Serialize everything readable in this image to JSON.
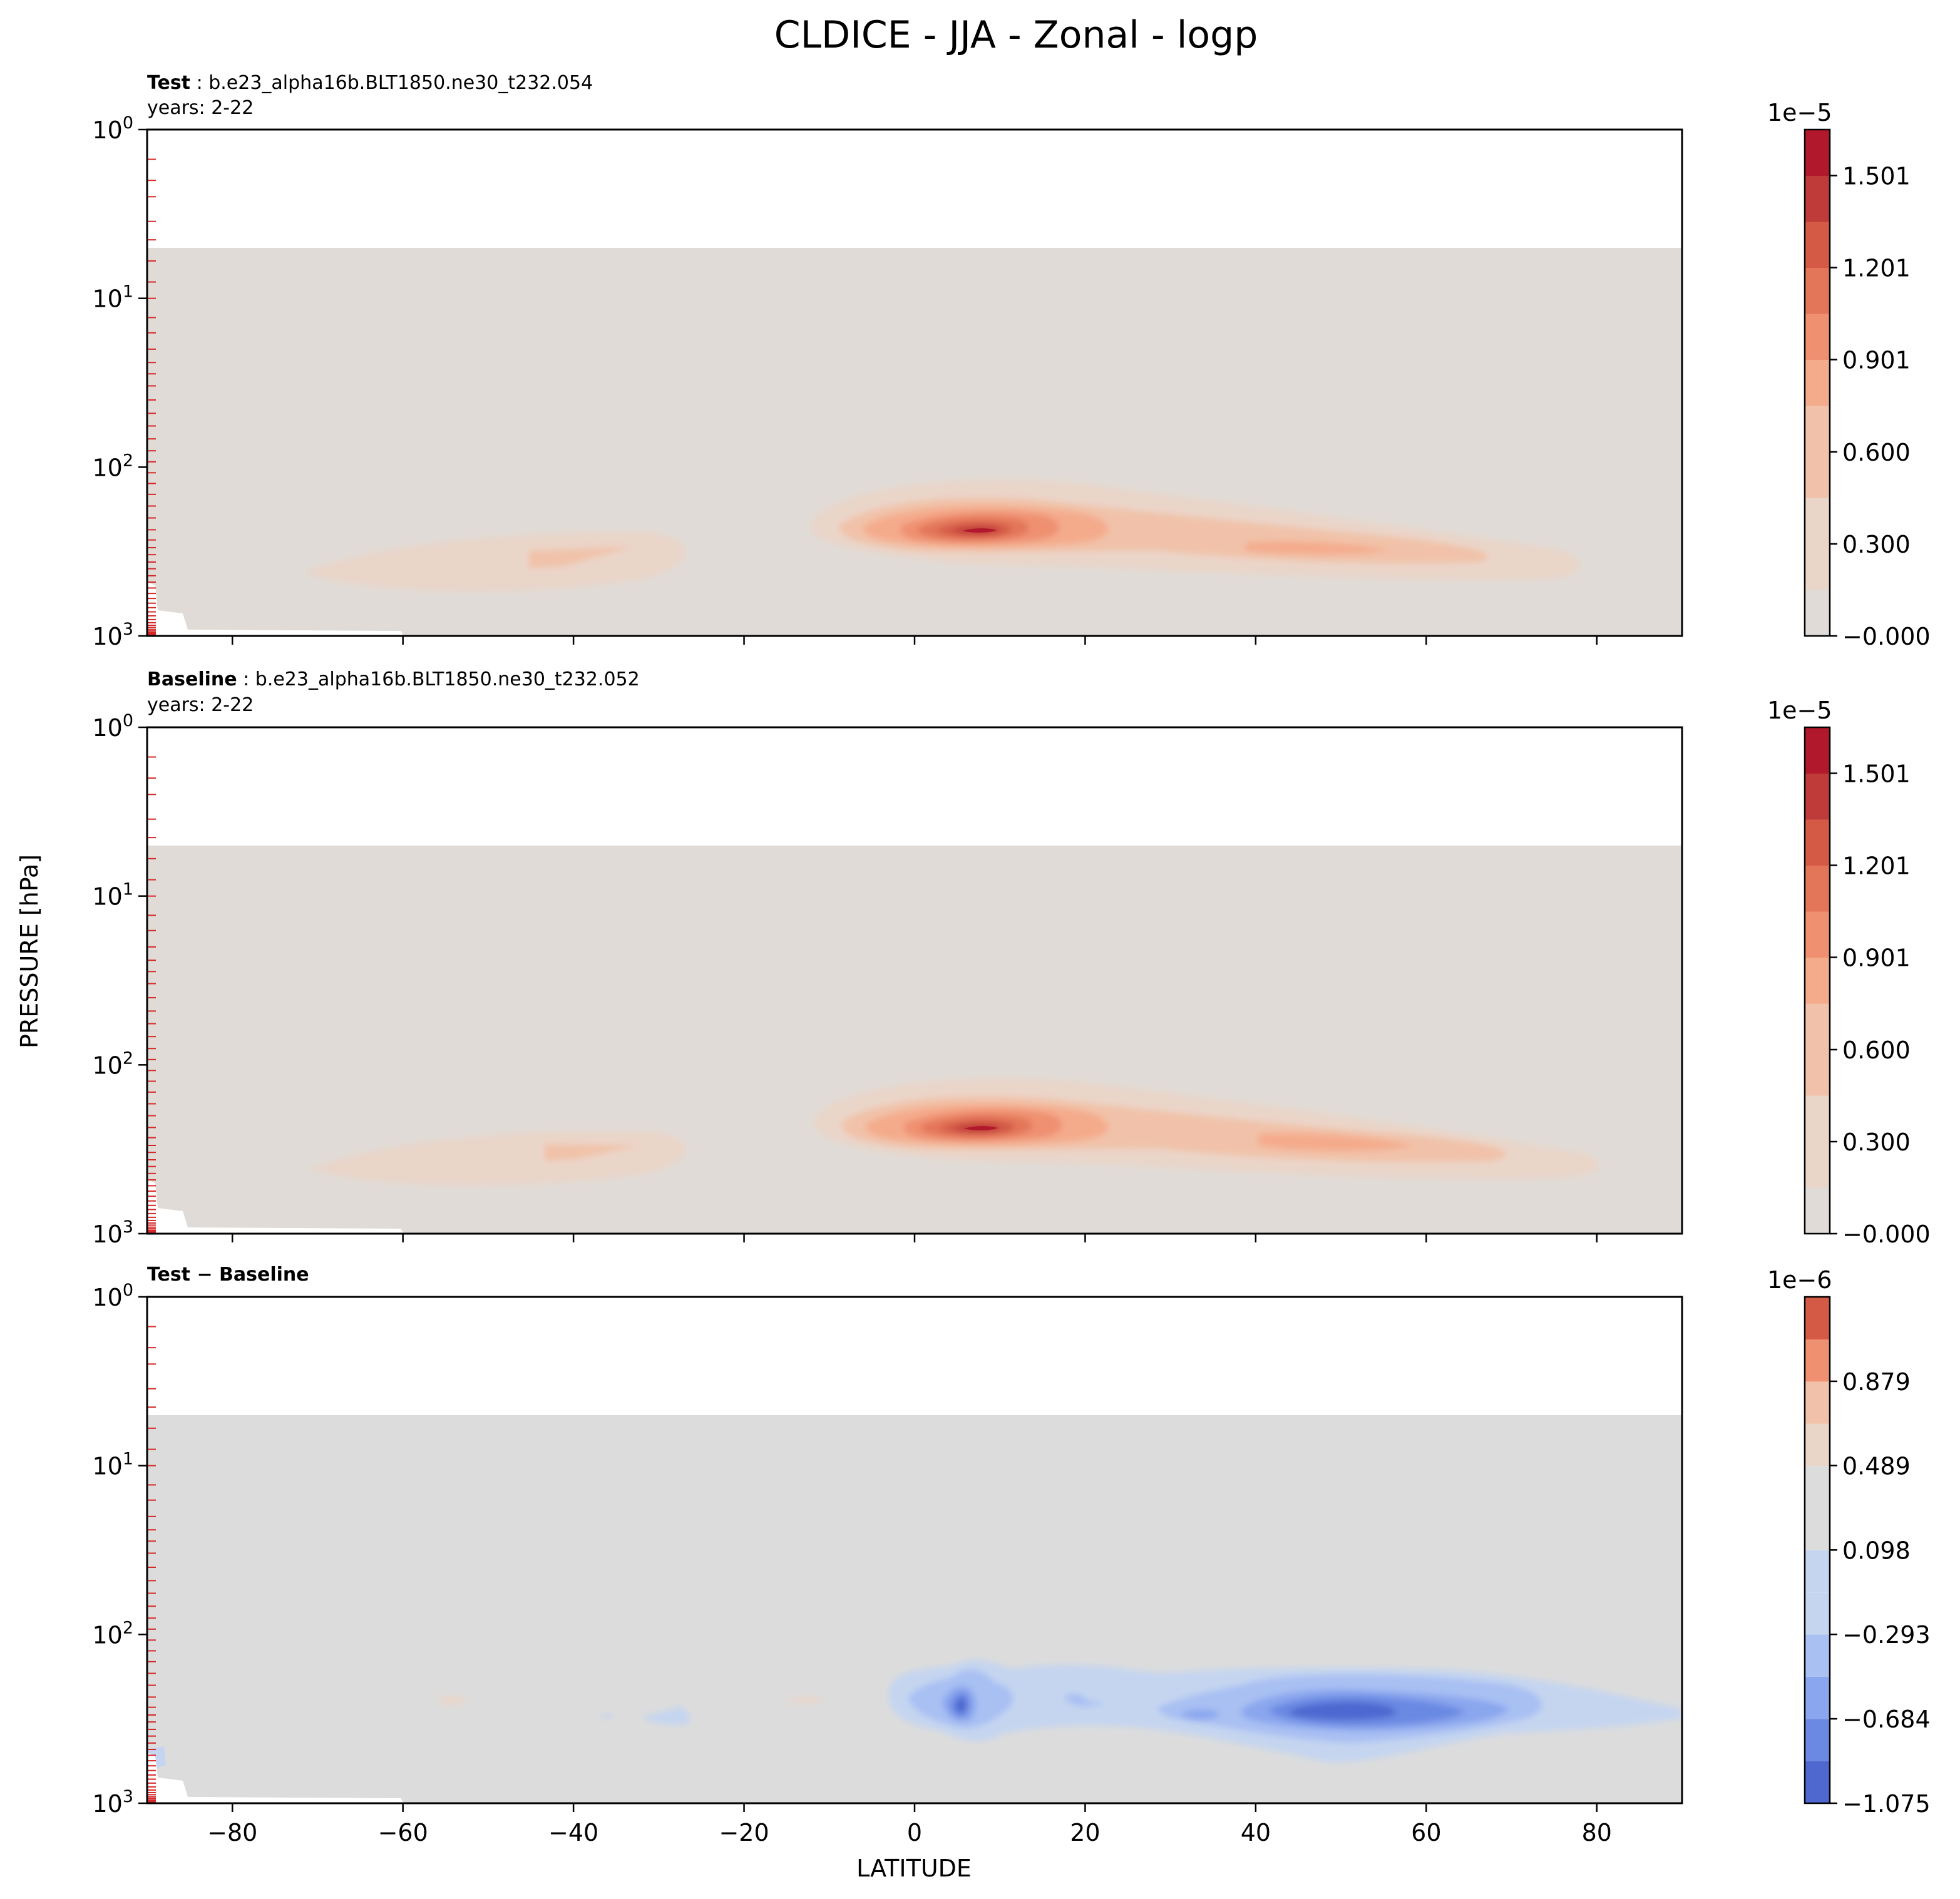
{
  "figure": {
    "title": "CLDICE - JJA - Zonal - logp",
    "ylabel": "PRESSURE [hPa]",
    "xlabel": "LATITUDE"
  },
  "colors": {
    "background_gray": "#e0dbd6",
    "diff_gray": "#dcdcdc",
    "red_scale": [
      "#ead5c9",
      "#f1c2a9",
      "#f4ab8c",
      "#ef9071",
      "#e37659",
      "#d45a46",
      "#be3b39",
      "#b2182b"
    ],
    "blue_scale": [
      "#c5d5f0",
      "#a9c0f3",
      "#8aa6ee",
      "#6b89e2",
      "#4e68d0"
    ],
    "level_tick_color": "#d62728"
  },
  "chart_data": [
    {
      "type": "contour",
      "panel": "test",
      "label_bold": "Test",
      "label_rest": " : b.e23_alpha16b.BLT1850.ne30_t232.054",
      "years": "years: 2-22",
      "xlim": [
        -90,
        90
      ],
      "ylim": [
        1000,
        1
      ],
      "yscale": "log",
      "x_ticks": [
        "−80",
        "−60",
        "−40",
        "−20",
        "0",
        "20",
        "40",
        "60",
        "80"
      ],
      "x_tick_values": [
        -80,
        -60,
        -40,
        -20,
        0,
        20,
        40,
        60,
        80
      ],
      "y_ticks": [
        {
          "value": 1,
          "base": "10",
          "exp": "0"
        },
        {
          "value": 10,
          "base": "10",
          "exp": "1"
        },
        {
          "value": 100,
          "base": "10",
          "exp": "2"
        },
        {
          "value": 1000,
          "base": "10",
          "exp": "3"
        }
      ],
      "data_top_hPa": 5,
      "colorbar": {
        "offset": "1e−5",
        "ticks": [
          "1.501",
          "1.201",
          "0.901",
          "0.600",
          "0.300",
          "−0.000"
        ],
        "tick_values": [
          1.501,
          1.201,
          0.901,
          0.6,
          0.3,
          0.0
        ],
        "range": [
          0.0,
          1.651
        ]
      },
      "features": [
        {
          "name": "tropical-maximum",
          "lat": 8,
          "p_hPa": 260,
          "peak": 1.6
        },
        {
          "name": "nh-midlat-band",
          "lat": 50,
          "p_hPa": 300,
          "peak": 0.55
        },
        {
          "name": "sh-midlat-band",
          "lat": -42,
          "p_hPa": 330,
          "peak": 0.45
        }
      ]
    },
    {
      "type": "contour",
      "panel": "baseline",
      "label_bold": "Baseline",
      "label_rest": " : b.e23_alpha16b.BLT1850.ne30_t232.052",
      "years": "years: 2-22",
      "xlim": [
        -90,
        90
      ],
      "ylim": [
        1000,
        1
      ],
      "yscale": "log",
      "x_ticks": [
        "−80",
        "−60",
        "−40",
        "−20",
        "0",
        "20",
        "40",
        "60",
        "80"
      ],
      "x_tick_values": [
        -80,
        -60,
        -40,
        -20,
        0,
        20,
        40,
        60,
        80
      ],
      "y_ticks": [
        {
          "value": 1,
          "base": "10",
          "exp": "0"
        },
        {
          "value": 10,
          "base": "10",
          "exp": "1"
        },
        {
          "value": 100,
          "base": "10",
          "exp": "2"
        },
        {
          "value": 1000,
          "base": "10",
          "exp": "3"
        }
      ],
      "data_top_hPa": 5,
      "colorbar": {
        "offset": "1e−5",
        "ticks": [
          "1.501",
          "1.201",
          "0.901",
          "0.600",
          "0.300",
          "−0.000"
        ],
        "tick_values": [
          1.501,
          1.201,
          0.901,
          0.6,
          0.3,
          0.0
        ],
        "range": [
          0.0,
          1.651
        ]
      },
      "features": [
        {
          "name": "tropical-maximum",
          "lat": 8,
          "p_hPa": 260,
          "peak": 1.6
        },
        {
          "name": "nh-midlat-band",
          "lat": 52,
          "p_hPa": 310,
          "peak": 0.6
        },
        {
          "name": "sh-midlat-band",
          "lat": -40,
          "p_hPa": 330,
          "peak": 0.45
        }
      ]
    },
    {
      "type": "contour",
      "panel": "difference",
      "label_bold": "Test − Baseline",
      "xlim": [
        -90,
        90
      ],
      "ylim": [
        1000,
        1
      ],
      "yscale": "log",
      "x_ticks": [
        "−80",
        "−60",
        "−40",
        "−20",
        "0",
        "20",
        "40",
        "60",
        "80"
      ],
      "x_tick_values": [
        -80,
        -60,
        -40,
        -20,
        0,
        20,
        40,
        60,
        80
      ],
      "y_ticks": [
        {
          "value": 1,
          "base": "10",
          "exp": "0"
        },
        {
          "value": 10,
          "base": "10",
          "exp": "1"
        },
        {
          "value": 100,
          "base": "10",
          "exp": "2"
        },
        {
          "value": 1000,
          "base": "10",
          "exp": "3"
        }
      ],
      "data_top_hPa": 5,
      "colorbar": {
        "offset": "1e−6",
        "ticks": [
          "0.879",
          "0.489",
          "0.098",
          "−0.293",
          "−0.684",
          "−1.075"
        ],
        "tick_values": [
          0.879,
          0.489,
          0.098,
          -0.293,
          -0.684,
          -1.075
        ],
        "range": [
          -1.075,
          1.27
        ]
      },
      "features": [
        {
          "name": "tropical-minimum",
          "lat": 5,
          "p_hPa": 270,
          "peak": -1.0
        },
        {
          "name": "nh-midlat-minimum",
          "lat": 50,
          "p_hPa": 300,
          "peak": -1.0
        }
      ]
    }
  ]
}
